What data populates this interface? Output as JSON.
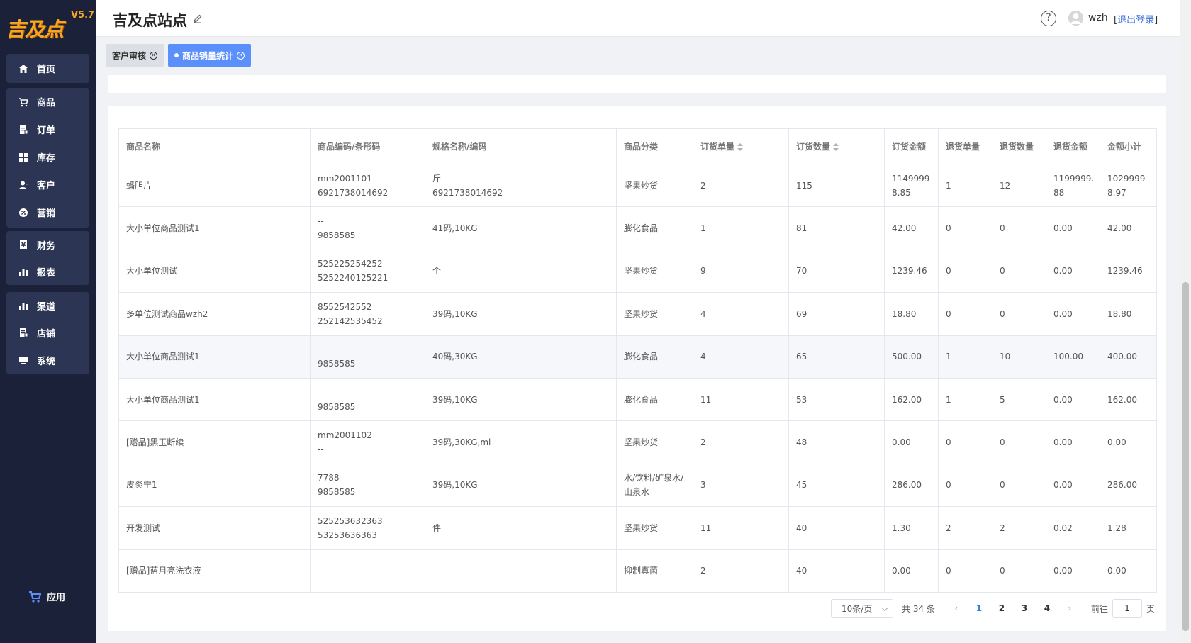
{
  "logo": {
    "text": "吉及点",
    "version": "V5.7"
  },
  "sidebar": {
    "groups": [
      [
        {
          "label": "首页",
          "icon": "home-icon"
        }
      ],
      [
        {
          "label": "商品",
          "icon": "cart-icon"
        },
        {
          "label": "订单",
          "icon": "order-icon"
        },
        {
          "label": "库存",
          "icon": "grid-icon"
        },
        {
          "label": "客户",
          "icon": "user-icon"
        },
        {
          "label": "营销",
          "icon": "percent-icon"
        }
      ],
      [
        {
          "label": "财务",
          "icon": "finance-icon"
        },
        {
          "label": "报表",
          "icon": "chart-icon"
        }
      ],
      [
        {
          "label": "渠道",
          "icon": "chart-icon"
        },
        {
          "label": "店铺",
          "icon": "store-icon"
        },
        {
          "label": "系统",
          "icon": "monitor-icon"
        }
      ]
    ],
    "bottom": {
      "label": "应用",
      "icon": "cart-icon"
    }
  },
  "header": {
    "title": "吉及点站点",
    "user": "wzh",
    "logout_prefix": "[",
    "logout": "退出登录",
    "logout_suffix": "]",
    "help": "?"
  },
  "tabs": [
    {
      "label": "客户审核",
      "active": false
    },
    {
      "label": "商品销量统计",
      "active": true
    }
  ],
  "table": {
    "columns": [
      "商品名称",
      "商品编码/条形码",
      "规格名称/编码",
      "商品分类",
      "订货单量",
      "订货数量",
      "订货金额",
      "退货单量",
      "退货数量",
      "退货金额",
      "金额小计"
    ],
    "rows": [
      [
        "蟠胆片",
        "mm2001101\n6921738014692",
        "斤\n6921738014692",
        "坚果炒货",
        "2",
        "115",
        "1149999\n8.85",
        "1",
        "12",
        "1199999.\n88",
        "1029999\n8.97"
      ],
      [
        "大小单位商品测试1",
        "--\n9858585",
        "41码,10KG",
        "膨化食品",
        "1",
        "81",
        "42.00",
        "0",
        "0",
        "0.00",
        "42.00"
      ],
      [
        "大小单位测试",
        "525225254252\n5252240125221",
        "个",
        "坚果炒货",
        "9",
        "70",
        "1239.46",
        "0",
        "0",
        "0.00",
        "1239.46"
      ],
      [
        "多单位测试商品wzh2",
        "8552542552\n252142535452",
        "39码,10KG",
        "坚果炒货",
        "4",
        "69",
        "18.80",
        "0",
        "0",
        "0.00",
        "18.80"
      ],
      [
        "大小单位商品测试1",
        "--\n9858585",
        "40码,30KG",
        "膨化食品",
        "4",
        "65",
        "500.00",
        "1",
        "10",
        "100.00",
        "400.00"
      ],
      [
        "大小单位商品测试1",
        "--\n9858585",
        "39码,10KG",
        "膨化食品",
        "11",
        "53",
        "162.00",
        "1",
        "5",
        "0.00",
        "162.00"
      ],
      [
        "[赠品]黑玉断续",
        "mm2001102\n--",
        "39码,30KG,ml",
        "坚果炒货",
        "2",
        "48",
        "0.00",
        "0",
        "0",
        "0.00",
        "0.00"
      ],
      [
        "皮炎宁1",
        "7788\n9858585",
        "39码,10KG",
        "水/饮料/矿泉水/\n山泉水",
        "3",
        "45",
        "286.00",
        "0",
        "0",
        "0.00",
        "286.00"
      ],
      [
        "开发测试",
        "525253632363\n53253636363",
        "件",
        "坚果炒货",
        "11",
        "40",
        "1.30",
        "2",
        "2",
        "0.02",
        "1.28"
      ],
      [
        "[赠品]蓝月亮洗衣液",
        "--\n--",
        "",
        "抑制真菌",
        "2",
        "40",
        "0.00",
        "0",
        "0",
        "0.00",
        "0.00"
      ]
    ]
  },
  "pager": {
    "page_size": "10条/页",
    "total": "共 34 条",
    "pages": [
      "1",
      "2",
      "3",
      "4"
    ],
    "current": "1",
    "prev": "‹",
    "next": "›",
    "goto_prefix": "前往",
    "goto_value": "1",
    "goto_suffix": "页"
  },
  "colors": {
    "sidebar_bg": "#1b2138",
    "nav_group_bg": "#2c3654",
    "accent": "#5b8ff9",
    "logo": "#f5a623"
  }
}
